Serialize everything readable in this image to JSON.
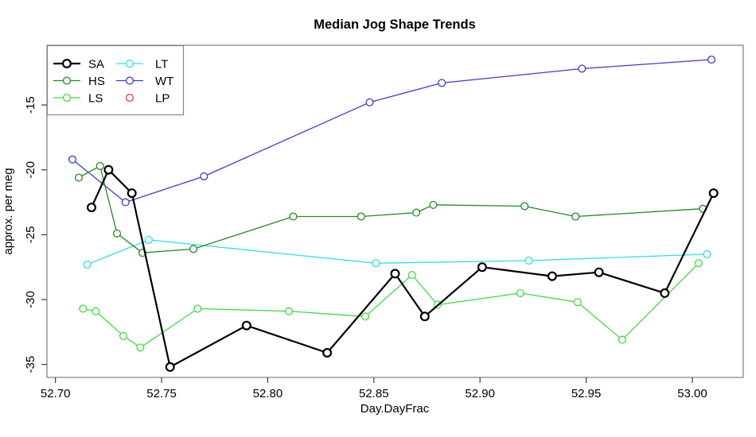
{
  "chart_data": {
    "type": "line",
    "title": "Median Jog Shape Trends",
    "xlabel": "Day.DayFrac",
    "ylabel": "approx. per meg",
    "xlim": [
      52.696,
      53.024
    ],
    "ylim": [
      -36.0,
      -10.4
    ],
    "x_ticks": [
      52.7,
      52.75,
      52.8,
      52.85,
      52.9,
      52.95,
      53.0
    ],
    "x_tick_labels": [
      "52.70",
      "52.75",
      "52.80",
      "52.85",
      "52.90",
      "52.95",
      "53.00"
    ],
    "y_ticks": [
      -15,
      -20,
      -25,
      -30,
      -35
    ],
    "y_tick_labels": [
      "-15",
      "-20",
      "-25",
      "-30",
      "-35"
    ],
    "grid": false,
    "marker": "open-circle",
    "legend": {
      "position": "top-left",
      "columns": [
        [
          "SA",
          "HS",
          "LS"
        ],
        [
          "LT",
          "WT",
          "LP"
        ]
      ]
    },
    "series": [
      {
        "name": "WT",
        "color": "#3b3bd9",
        "line_width": 1.3,
        "marker_radius": 4.4,
        "legend_line": true,
        "points": [
          [
            52.708,
            -19.2
          ],
          [
            52.733,
            -22.5
          ],
          [
            52.77,
            -20.5
          ],
          [
            52.848,
            -14.8
          ],
          [
            52.882,
            -13.3
          ],
          [
            52.948,
            -12.2
          ],
          [
            53.009,
            -11.5
          ]
        ]
      },
      {
        "name": "LT",
        "color": "#2bdfe8",
        "line_width": 1.3,
        "marker_radius": 4.4,
        "legend_line": true,
        "points": [
          [
            52.715,
            -27.3
          ],
          [
            52.744,
            -25.4
          ],
          [
            52.851,
            -27.2
          ],
          [
            52.923,
            -27.0
          ],
          [
            53.007,
            -26.5
          ]
        ]
      },
      {
        "name": "HS",
        "color": "#228b22",
        "line_width": 1.3,
        "marker_radius": 4.4,
        "legend_line": true,
        "points": [
          [
            52.711,
            -20.6
          ],
          [
            52.721,
            -19.7
          ],
          [
            52.729,
            -24.9
          ],
          [
            52.741,
            -26.4
          ],
          [
            52.765,
            -26.1
          ],
          [
            52.812,
            -23.6
          ],
          [
            52.844,
            -23.6
          ],
          [
            52.87,
            -23.3
          ],
          [
            52.878,
            -22.7
          ],
          [
            52.921,
            -22.8
          ],
          [
            52.945,
            -23.6
          ],
          [
            53.005,
            -23.0
          ]
        ]
      },
      {
        "name": "LS",
        "color": "#42da42",
        "line_width": 1.3,
        "marker_radius": 4.4,
        "legend_line": true,
        "points": [
          [
            52.713,
            -30.7
          ],
          [
            52.719,
            -30.9
          ],
          [
            52.732,
            -32.8
          ],
          [
            52.74,
            -33.7
          ],
          [
            52.767,
            -30.7
          ],
          [
            52.81,
            -30.9
          ],
          [
            52.846,
            -31.3
          ],
          [
            52.868,
            -28.1
          ],
          [
            52.88,
            -30.4
          ],
          [
            52.919,
            -29.5
          ],
          [
            52.946,
            -30.2
          ],
          [
            52.967,
            -33.1
          ],
          [
            53.003,
            -27.2
          ]
        ]
      },
      {
        "name": "SA",
        "color": "#000000",
        "line_width": 2.2,
        "marker_radius": 4.9,
        "legend_line": true,
        "points": [
          [
            52.717,
            -22.9
          ],
          [
            52.725,
            -20.0
          ],
          [
            52.736,
            -21.8
          ],
          [
            52.754,
            -35.2
          ],
          [
            52.79,
            -32.0
          ],
          [
            52.828,
            -34.1
          ],
          [
            52.86,
            -28.0
          ],
          [
            52.874,
            -31.3
          ],
          [
            52.901,
            -27.5
          ],
          [
            52.934,
            -28.2
          ],
          [
            52.956,
            -27.9
          ],
          [
            52.987,
            -29.5
          ],
          [
            53.01,
            -21.8
          ]
        ]
      },
      {
        "name": "LP",
        "color": "#e93a3a",
        "line_width": 1.3,
        "marker_radius": 4.4,
        "legend_line": false,
        "points": []
      }
    ]
  }
}
